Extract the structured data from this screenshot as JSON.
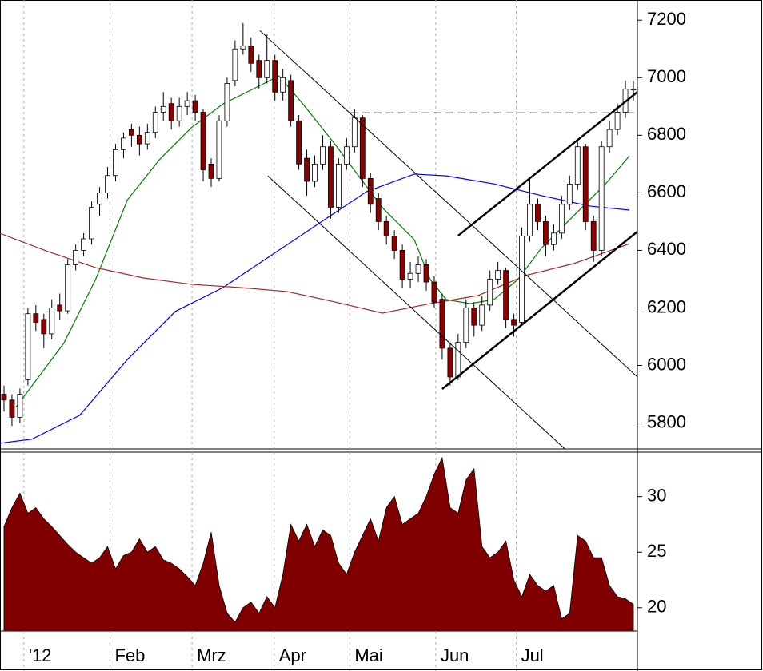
{
  "chart_data": [
    {
      "type": "candlestick",
      "x": [
        0.5,
        1.5,
        2.5,
        3.5,
        4.5,
        5.5,
        6.5,
        7.5,
        8.5,
        9.5,
        10.5,
        11.5,
        12.5,
        13.5,
        14.5,
        15.5,
        16.5,
        17.5,
        18.5,
        19.5,
        20.5,
        21.5,
        22.5,
        23.5,
        24.5,
        25.5,
        26.5,
        27.5,
        28.5,
        29.5,
        30.5,
        31.5,
        32.5,
        33.5,
        34.5,
        35.5,
        36.5,
        37.5,
        38.5,
        39.5,
        40.5,
        41.5,
        42.5,
        43.5,
        44.5,
        45.5,
        46.5,
        47.5,
        48.5,
        49.5,
        50.5,
        51.5,
        52.5,
        53.5,
        54.5,
        55.5,
        56.5,
        57.5,
        58.5,
        59.5,
        60.5,
        61.5,
        62.5,
        63.5,
        64.5,
        65.5,
        66.5,
        67.5,
        68.5,
        69.5,
        70.5,
        71.5,
        72.5,
        73.5,
        74.5,
        75.5,
        76.5,
        77.5,
        78.5,
        79.5
      ],
      "ohlc": [
        [
          5900,
          5930,
          5840,
          5880
        ],
        [
          5880,
          5900,
          5790,
          5820
        ],
        [
          5820,
          5920,
          5800,
          5900
        ],
        [
          5950,
          6200,
          5930,
          6180
        ],
        [
          6180,
          6210,
          6120,
          6150
        ],
        [
          6160,
          6180,
          6060,
          6110
        ],
        [
          6110,
          6230,
          6090,
          6200
        ],
        [
          6210,
          6250,
          6160,
          6190
        ],
        [
          6190,
          6370,
          6180,
          6350
        ],
        [
          6350,
          6420,
          6330,
          6400
        ],
        [
          6400,
          6460,
          6380,
          6440
        ],
        [
          6440,
          6570,
          6420,
          6550
        ],
        [
          6560,
          6620,
          6520,
          6600
        ],
        [
          6600,
          6690,
          6580,
          6660
        ],
        [
          6660,
          6770,
          6640,
          6750
        ],
        [
          6750,
          6810,
          6720,
          6790
        ],
        [
          6820,
          6840,
          6760,
          6800
        ],
        [
          6800,
          6830,
          6730,
          6770
        ],
        [
          6770,
          6840,
          6750,
          6810
        ],
        [
          6810,
          6900,
          6790,
          6880
        ],
        [
          6880,
          6950,
          6850,
          6900
        ],
        [
          6910,
          6930,
          6820,
          6850
        ],
        [
          6850,
          6930,
          6830,
          6900
        ],
        [
          6900,
          6950,
          6870,
          6920
        ],
        [
          6920,
          6940,
          6850,
          6880
        ],
        [
          6880,
          6890,
          6640,
          6680
        ],
        [
          6700,
          6720,
          6620,
          6650
        ],
        [
          6650,
          6870,
          6640,
          6850
        ],
        [
          6850,
          7000,
          6830,
          6980
        ],
        [
          6990,
          7130,
          6970,
          7100
        ],
        [
          7100,
          7190,
          7080,
          7110
        ],
        [
          7110,
          7140,
          7020,
          7050
        ],
        [
          7060,
          7080,
          6960,
          7000
        ],
        [
          7000,
          7150,
          6980,
          7060
        ],
        [
          7060,
          7080,
          6920,
          6950
        ],
        [
          6950,
          7030,
          6920,
          7000
        ],
        [
          6990,
          7010,
          6830,
          6850
        ],
        [
          6850,
          6870,
          6680,
          6700
        ],
        [
          6720,
          6750,
          6590,
          6640
        ],
        [
          6640,
          6730,
          6620,
          6700
        ],
        [
          6700,
          6800,
          6680,
          6760
        ],
        [
          6760,
          6780,
          6510,
          6550
        ],
        [
          6550,
          6720,
          6530,
          6700
        ],
        [
          6700,
          6790,
          6680,
          6760
        ],
        [
          6760,
          6890,
          6740,
          6860
        ],
        [
          6860,
          6870,
          6620,
          6650
        ],
        [
          6650,
          6670,
          6530,
          6560
        ],
        [
          6580,
          6600,
          6470,
          6500
        ],
        [
          6500,
          6520,
          6420,
          6450
        ],
        [
          6450,
          6470,
          6370,
          6400
        ],
        [
          6400,
          6420,
          6270,
          6300
        ],
        [
          6300,
          6360,
          6270,
          6320
        ],
        [
          6320,
          6380,
          6290,
          6350
        ],
        [
          6350,
          6370,
          6260,
          6290
        ],
        [
          6290,
          6310,
          6200,
          6220
        ],
        [
          6230,
          6250,
          6020,
          6060
        ],
        [
          6060,
          6080,
          5930,
          5960
        ],
        [
          5960,
          6110,
          5950,
          6080
        ],
        [
          6080,
          6230,
          6060,
          6200
        ],
        [
          6200,
          6220,
          6100,
          6140
        ],
        [
          6140,
          6240,
          6120,
          6210
        ],
        [
          6210,
          6330,
          6190,
          6300
        ],
        [
          6300,
          6360,
          6280,
          6330
        ],
        [
          6330,
          6340,
          6130,
          6160
        ],
        [
          6160,
          6180,
          6100,
          6140
        ],
        [
          6150,
          6480,
          6140,
          6450
        ],
        [
          6450,
          6650,
          6430,
          6560
        ],
        [
          6560,
          6580,
          6470,
          6500
        ],
        [
          6500,
          6520,
          6380,
          6420
        ],
        [
          6420,
          6490,
          6400,
          6460
        ],
        [
          6460,
          6590,
          6440,
          6560
        ],
        [
          6560,
          6660,
          6540,
          6630
        ],
        [
          6630,
          6780,
          6610,
          6760
        ],
        [
          6760,
          6770,
          6470,
          6500
        ],
        [
          6500,
          6520,
          6360,
          6400
        ],
        [
          6400,
          6780,
          6380,
          6760
        ],
        [
          6760,
          6850,
          6740,
          6820
        ],
        [
          6820,
          6910,
          6800,
          6880
        ],
        [
          6880,
          6990,
          6860,
          6960
        ],
        [
          6960,
          6990,
          6920,
          6960
        ]
      ],
      "up_color": "#ffffff",
      "down_color": "#8b0000",
      "series": [
        {
          "color": "#008000",
          "x": [
            2,
            8,
            12,
            16,
            20,
            24,
            28,
            32,
            35,
            38,
            42,
            45,
            48,
            52,
            54,
            56,
            59,
            62,
            65,
            68,
            72,
            76,
            79
          ],
          "values": [
            5855,
            6077,
            6299,
            6576,
            6715,
            6826,
            6909,
            6964,
            7006,
            6909,
            6770,
            6659,
            6548,
            6437,
            6299,
            6229,
            6215,
            6229,
            6299,
            6409,
            6520,
            6631,
            6728
          ]
        },
        {
          "color": "#0000ff",
          "x": [
            0,
            4,
            10,
            16,
            22,
            28,
            34,
            40,
            46,
            52,
            56,
            62,
            68,
            74,
            79
          ],
          "values": [
            5730,
            5744,
            5827,
            6021,
            6188,
            6271,
            6382,
            6493,
            6604,
            6665,
            6659,
            6631,
            6590,
            6554,
            6540
          ]
        },
        {
          "color": "#a52a2a",
          "x": [
            0,
            6,
            12,
            18,
            24,
            30,
            36,
            42,
            48,
            54,
            60,
            66,
            72,
            79
          ],
          "values": [
            6459,
            6396,
            6340,
            6304,
            6282,
            6271,
            6257,
            6221,
            6182,
            6215,
            6243,
            6313,
            6354,
            6423
          ]
        }
      ],
      "trend_lines": [
        {
          "x": [
            32.6,
            80
          ],
          "values": [
            7164,
            5960
          ],
          "width": 1,
          "dashed": false
        },
        {
          "x": [
            33.6,
            70.9
          ],
          "values": [
            6659,
            5710
          ],
          "width": 1,
          "dashed": false
        },
        {
          "x": [
            55.5,
            80
          ],
          "values": [
            5918,
            6465
          ],
          "width": 2.5,
          "dashed": false
        },
        {
          "x": [
            57.5,
            80
          ],
          "values": [
            6451,
            6950
          ],
          "width": 2.5,
          "dashed": false
        },
        {
          "x": [
            43.9,
            80
          ],
          "values": [
            6878,
            6878
          ],
          "width": 1,
          "dashed": true
        }
      ],
      "xlim": [
        0,
        80
      ],
      "ylim": [
        5710,
        7270
      ],
      "yticks": [
        5800,
        6000,
        6200,
        6400,
        6600,
        6800,
        7000,
        7200
      ],
      "grid": true
    },
    {
      "type": "area",
      "color": "#800000",
      "x": [
        0.5,
        1.5,
        2.5,
        3.5,
        4.5,
        5.5,
        6.5,
        7.5,
        8.5,
        9.5,
        10.5,
        11.5,
        12.5,
        13.5,
        14.5,
        15.5,
        16.5,
        17.5,
        18.5,
        19.5,
        20.5,
        21.5,
        22.5,
        23.5,
        24.5,
        25.5,
        26.5,
        27.5,
        28.5,
        29.5,
        30.5,
        31.5,
        32.5,
        33.5,
        34.5,
        35.5,
        36.5,
        37.5,
        38.5,
        39.5,
        40.5,
        41.5,
        42.5,
        43.5,
        44.5,
        45.5,
        46.5,
        47.5,
        48.5,
        49.5,
        50.5,
        51.5,
        52.5,
        53.5,
        54.5,
        55.5,
        56.5,
        57.5,
        58.5,
        59.5,
        60.5,
        61.5,
        62.5,
        63.5,
        64.5,
        65.5,
        66.5,
        67.5,
        68.5,
        69.5,
        70.5,
        71.5,
        72.5,
        73.5,
        74.5,
        75.5,
        76.5,
        77.5,
        78.5,
        79.5
      ],
      "values": [
        27.3,
        29,
        30.3,
        28.5,
        29,
        28,
        27.3,
        26.5,
        25.7,
        25,
        24.5,
        24,
        24.5,
        25.5,
        23.5,
        24.7,
        25,
        26.2,
        25,
        25.5,
        24.3,
        24,
        23.5,
        22.8,
        22,
        24,
        26.8,
        22,
        19.5,
        18.7,
        20,
        20.5,
        19.5,
        21,
        20,
        23,
        27.5,
        26,
        27.5,
        25.5,
        27,
        26.5,
        24,
        23,
        25,
        26.5,
        28,
        26,
        29,
        30,
        27.5,
        28,
        28.5,
        30,
        32,
        33.5,
        29,
        28.5,
        31.5,
        32.5,
        25.5,
        24.5,
        25,
        26,
        22.5,
        21,
        23,
        22,
        21.5,
        22,
        19,
        19.5,
        26.5,
        26,
        24.5,
        24.5,
        22,
        21,
        20.8,
        20.3
      ],
      "xlim": [
        0,
        80
      ],
      "ylim": [
        17.9,
        34
      ],
      "yticks": [
        20,
        25,
        30
      ],
      "xticks": [
        {
          "value": 3.0,
          "label": "'12"
        },
        {
          "value": 13.8,
          "label": "Feb"
        },
        {
          "value": 24.1,
          "label": "Mrz"
        },
        {
          "value": 34.4,
          "label": "Apr"
        },
        {
          "value": 43.9,
          "label": "Mai"
        },
        {
          "value": 54.7,
          "label": "Jun"
        },
        {
          "value": 64.8,
          "label": "Jul"
        }
      ],
      "grid": true
    }
  ]
}
